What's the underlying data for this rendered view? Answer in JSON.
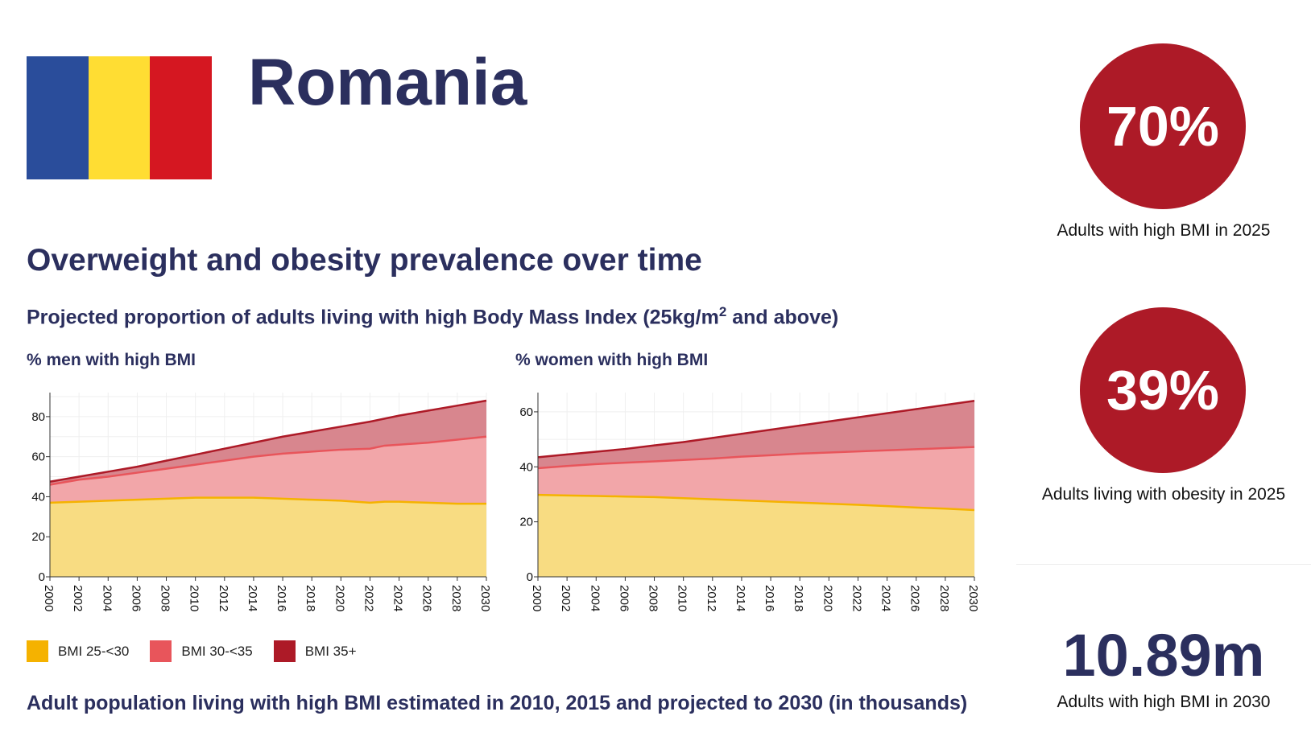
{
  "header": {
    "country": "Romania",
    "flag_colors": [
      "#2a4d9b",
      "#ffdd33",
      "#d51721"
    ]
  },
  "section_title": "Overweight and obesity prevalence over time",
  "subtitle": {
    "before_sup": "Projected proportion of adults living with high Body Mass Index (25kg/m",
    "sup": "2",
    "after_sup": " and above)"
  },
  "legend": [
    {
      "label": "BMI 25-<30",
      "color": "#f5b200"
    },
    {
      "label": "BMI 30-<35",
      "color": "#e8555b"
    },
    {
      "label": "BMI 35+",
      "color": "#ad1a27"
    }
  ],
  "bottom_title": "Adult population living with high BMI estimated in 2010, 2015 and projected to 2030 (in thousands)",
  "stats": {
    "high_bmi_2025": {
      "value": "70%",
      "caption": "Adults with high BMI in 2025"
    },
    "obesity_2025": {
      "value": "39%",
      "caption": "Adults living with obesity in 2025"
    },
    "high_bmi_2030": {
      "value": "10.89m",
      "caption": "Adults with high BMI in 2030"
    }
  },
  "chart_data": [
    {
      "type": "area",
      "title": "% men with high BMI",
      "stacked": false,
      "x": [
        2000,
        2002,
        2004,
        2006,
        2008,
        2010,
        2012,
        2014,
        2016,
        2018,
        2020,
        2022,
        2023,
        2024,
        2026,
        2028,
        2030
      ],
      "x_ticks": [
        2000,
        2002,
        2004,
        2006,
        2008,
        2010,
        2012,
        2014,
        2016,
        2018,
        2020,
        2022,
        2024,
        2026,
        2028,
        2030
      ],
      "y_ticks": [
        0,
        20,
        40,
        60,
        80
      ],
      "ylim": [
        0,
        92
      ],
      "xlim": [
        2000,
        2030
      ],
      "grid": true,
      "series": [
        {
          "name": "BMI 35+",
          "values": [
            47.5,
            50.0,
            52.5,
            55.0,
            58.0,
            61.0,
            64.0,
            67.0,
            70.0,
            72.5,
            75.0,
            77.5,
            79.0,
            80.5,
            83.0,
            85.5,
            88.0
          ]
        },
        {
          "name": "BMI 30-<35",
          "values": [
            46.0,
            48.5,
            50.0,
            52.0,
            54.0,
            56.0,
            58.0,
            60.0,
            61.5,
            62.5,
            63.5,
            64.0,
            65.5,
            66.0,
            67.0,
            68.5,
            70.0
          ]
        },
        {
          "name": "BMI 25-<30",
          "values": [
            37.0,
            37.5,
            38.0,
            38.5,
            39.0,
            39.5,
            39.5,
            39.5,
            39.0,
            38.5,
            38.0,
            37.0,
            37.5,
            37.5,
            37.0,
            36.5,
            36.5
          ]
        }
      ]
    },
    {
      "type": "area",
      "title": "% women with high BMI",
      "stacked": false,
      "x": [
        2000,
        2002,
        2004,
        2006,
        2008,
        2010,
        2012,
        2014,
        2016,
        2018,
        2020,
        2022,
        2024,
        2026,
        2028,
        2030
      ],
      "x_ticks": [
        2000,
        2002,
        2004,
        2006,
        2008,
        2010,
        2012,
        2014,
        2016,
        2018,
        2020,
        2022,
        2024,
        2026,
        2028,
        2030
      ],
      "y_ticks": [
        0,
        20,
        40,
        60
      ],
      "ylim": [
        0,
        67
      ],
      "xlim": [
        2000,
        2030
      ],
      "grid": true,
      "series": [
        {
          "name": "BMI 35+",
          "values": [
            43.5,
            44.5,
            45.5,
            46.5,
            47.8,
            49.0,
            50.5,
            52.0,
            53.5,
            55.0,
            56.5,
            58.0,
            59.5,
            61.0,
            62.5,
            64.0
          ]
        },
        {
          "name": "BMI 30-<35",
          "values": [
            39.5,
            40.3,
            41.0,
            41.5,
            42.0,
            42.5,
            43.0,
            43.7,
            44.2,
            44.8,
            45.2,
            45.6,
            46.0,
            46.4,
            46.8,
            47.2
          ]
        },
        {
          "name": "BMI 25-<30",
          "values": [
            29.8,
            29.6,
            29.4,
            29.2,
            29.0,
            28.6,
            28.2,
            27.8,
            27.4,
            27.0,
            26.6,
            26.2,
            25.7,
            25.2,
            24.8,
            24.3
          ]
        }
      ]
    }
  ]
}
